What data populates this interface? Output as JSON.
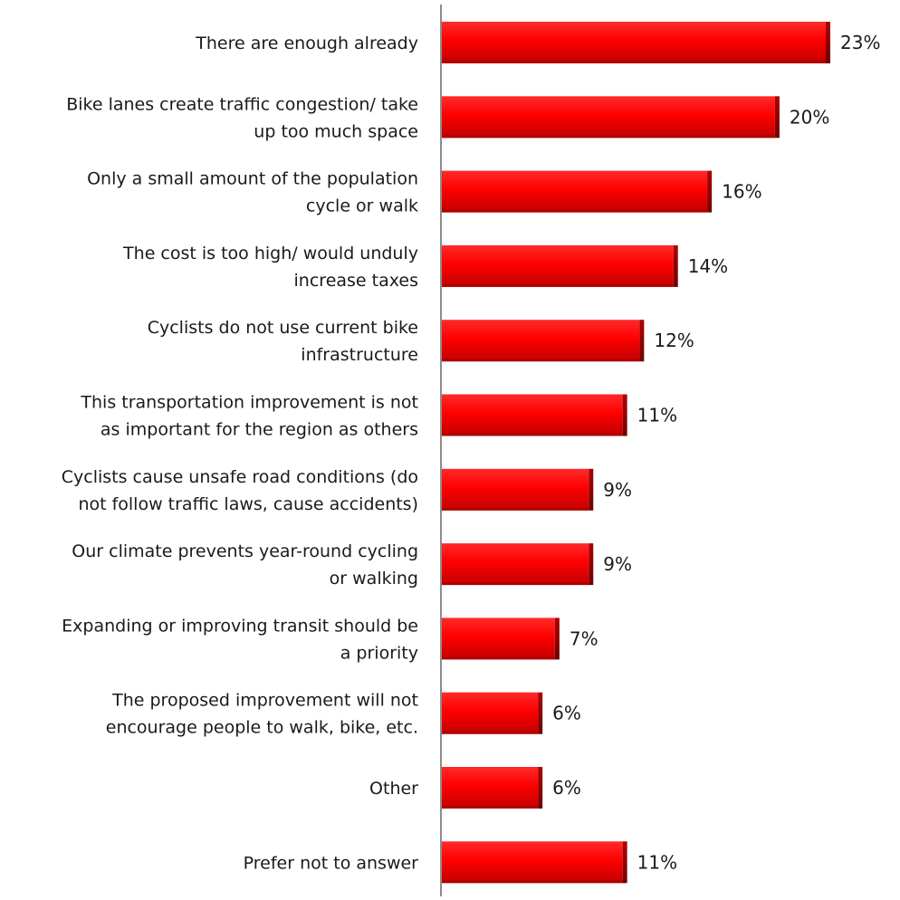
{
  "chart_data": {
    "type": "bar",
    "orientation": "horizontal",
    "categories": [
      "There are enough already",
      "Bike lanes create traffic congestion/ take up too much space",
      "Only a small amount of the population cycle or walk",
      "The cost is too high/ would unduly increase taxes",
      "Cyclists do not use current bike infrastructure",
      "This transportation improvement is not as important for the region as others",
      "Cyclists cause unsafe road conditions (do not follow traffic laws, cause accidents)",
      "Our climate prevents year-round cycling or walking",
      "Expanding or improving transit should be a priority",
      "The proposed improvement will not encourage people to walk, bike, etc.",
      "Other",
      "Prefer not to answer"
    ],
    "category_lines": [
      [
        "There are enough already"
      ],
      [
        "Bike lanes create traffic congestion/ take",
        "up too much space"
      ],
      [
        "Only a small amount of the population",
        "cycle or walk"
      ],
      [
        "The cost is too high/ would unduly",
        "increase taxes"
      ],
      [
        "Cyclists do not use current bike",
        "infrastructure"
      ],
      [
        "This transportation improvement is not",
        "as important for the region as others"
      ],
      [
        "Cyclists cause unsafe road conditions (do",
        "not follow traffic laws, cause accidents)"
      ],
      [
        "Our climate prevents year-round cycling",
        "or walking"
      ],
      [
        "Expanding or improving transit should be",
        "a priority"
      ],
      [
        "The proposed improvement will not",
        "encourage people to walk, bike, etc."
      ],
      [
        "Other"
      ],
      [
        "Prefer not to answer"
      ]
    ],
    "values": [
      23,
      20,
      16,
      14,
      12,
      11,
      9,
      9,
      7,
      6,
      6,
      11
    ],
    "value_labels": [
      "23%",
      "20%",
      "16%",
      "14%",
      "12%",
      "11%",
      "9%",
      "9%",
      "7%",
      "6%",
      "6%",
      "11%"
    ],
    "unit": "%",
    "xlim": [
      0,
      23
    ],
    "grid": false,
    "legend": "none",
    "title": "",
    "xlabel": "",
    "ylabel": "",
    "colors": {
      "bar_top": "#ff1a1a",
      "bar_mid": "#ff0000",
      "bar_bottom": "#c80000",
      "bar_shadow": "#7a0000",
      "axis": "#8c8c8c",
      "text": "#1a1a1a"
    }
  }
}
